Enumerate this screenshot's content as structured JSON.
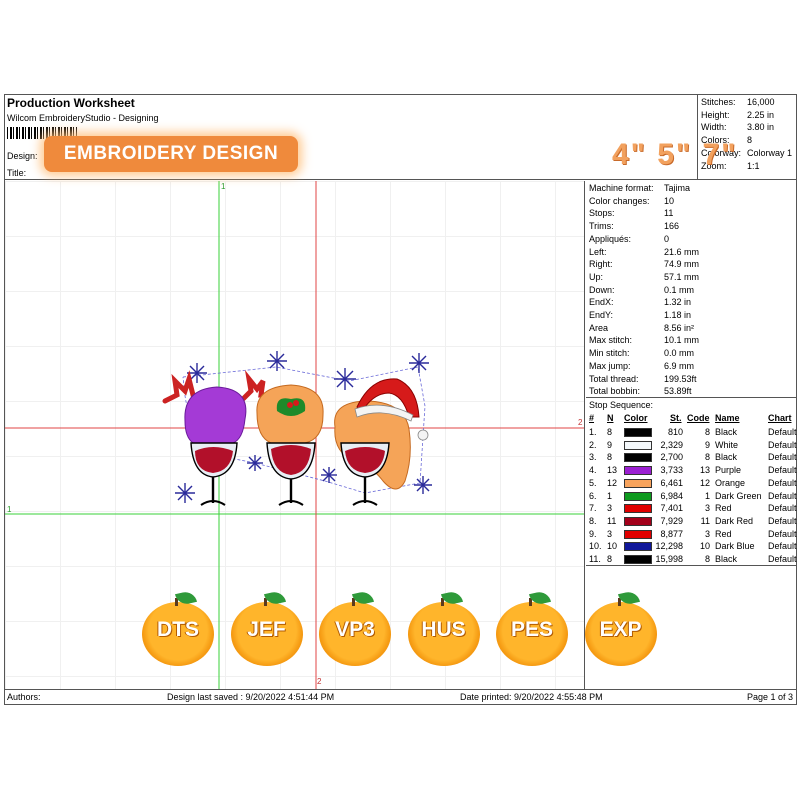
{
  "worksheet": {
    "title": "Production Worksheet",
    "app": "Wilcom EmbroideryStudio - Designing",
    "design_label": "Design:",
    "title_label": "Title:"
  },
  "stats": [
    {
      "k": "Stitches:",
      "v": "16,000"
    },
    {
      "k": "Height:",
      "v": "2.25 in"
    },
    {
      "k": "Width:",
      "v": "3.80 in"
    },
    {
      "k": "Colors:",
      "v": "8"
    },
    {
      "k": "Colorway:",
      "v": "Colorway 1"
    },
    {
      "k": "Zoom:",
      "v": "1:1"
    }
  ],
  "overlay": {
    "badge": "EMBROIDERY DESIGN",
    "sizes": "4\" 5\" 7\""
  },
  "machine": [
    {
      "k": "Machine format:",
      "v": "Tajima"
    },
    {
      "k": "Color changes:",
      "v": "10"
    },
    {
      "k": "Stops:",
      "v": "11"
    },
    {
      "k": "Trims:",
      "v": "166"
    },
    {
      "k": "Appliqués:",
      "v": "0"
    },
    {
      "k": "Left:",
      "v": "21.6 mm"
    },
    {
      "k": "Right:",
      "v": "74.9 mm"
    },
    {
      "k": "Up:",
      "v": "57.1 mm"
    },
    {
      "k": "Down:",
      "v": "0.1 mm"
    },
    {
      "k": "EndX:",
      "v": "1.32 in"
    },
    {
      "k": "EndY:",
      "v": "1.18 in"
    },
    {
      "k": "Area",
      "v": "8.56 in²"
    },
    {
      "k": "Max stitch:",
      "v": "10.1 mm"
    },
    {
      "k": "Min stitch:",
      "v": "0.0 mm"
    },
    {
      "k": "Max jump:",
      "v": "6.9 mm"
    },
    {
      "k": "Total thread:",
      "v": "199.53ft"
    },
    {
      "k": "Total bobbin:",
      "v": "53.89ft"
    }
  ],
  "stop_sequence": {
    "title": "Stop Sequence:",
    "headers": {
      "num": "#",
      "n": "N",
      "color": "Color",
      "st": "St.",
      "code": "Code",
      "name": "Name",
      "chart": "Chart"
    },
    "rows": [
      {
        "num": "1.",
        "n": "8",
        "color": "#000000",
        "st": "810",
        "code": "8",
        "name": "Black",
        "chart": "Default"
      },
      {
        "num": "2.",
        "n": "9",
        "color": "#f4f8fb",
        "st": "2,329",
        "code": "9",
        "name": "White",
        "chart": "Default"
      },
      {
        "num": "3.",
        "n": "8",
        "color": "#000000",
        "st": "2,700",
        "code": "8",
        "name": "Black",
        "chart": "Default"
      },
      {
        "num": "4.",
        "n": "13",
        "color": "#9b1fd1",
        "st": "3,733",
        "code": "13",
        "name": "Purple",
        "chart": "Default"
      },
      {
        "num": "5.",
        "n": "12",
        "color": "#f7a35c",
        "st": "6,461",
        "code": "12",
        "name": "Orange",
        "chart": "Default"
      },
      {
        "num": "6.",
        "n": "1",
        "color": "#0d9a1e",
        "st": "6,984",
        "code": "1",
        "name": "Dark Green",
        "chart": "Default"
      },
      {
        "num": "7.",
        "n": "3",
        "color": "#e00000",
        "st": "7,401",
        "code": "3",
        "name": "Red",
        "chart": "Default"
      },
      {
        "num": "8.",
        "n": "11",
        "color": "#a3001a",
        "st": "7,929",
        "code": "11",
        "name": "Dark Red",
        "chart": "Default"
      },
      {
        "num": "9.",
        "n": "3",
        "color": "#e00000",
        "st": "8,877",
        "code": "3",
        "name": "Red",
        "chart": "Default"
      },
      {
        "num": "10.",
        "n": "10",
        "color": "#10179a",
        "st": "12,298",
        "code": "10",
        "name": "Dark Blue",
        "chart": "Default"
      },
      {
        "num": "11.",
        "n": "8",
        "color": "#000000",
        "st": "15,998",
        "code": "8",
        "name": "Black",
        "chart": "Default"
      }
    ]
  },
  "guides": {
    "marker_1": "1",
    "marker_2": "2"
  },
  "formats": [
    "DTS",
    "JEF",
    "VP3",
    "HUS",
    "PES",
    "EXP"
  ],
  "footer": {
    "authors": "Authors:",
    "saved": "Design last saved : 9/20/2022 4:51:44 PM",
    "printed": "Date printed: 9/20/2022 4:55:48 PM",
    "page": "Page 1 of 3"
  }
}
